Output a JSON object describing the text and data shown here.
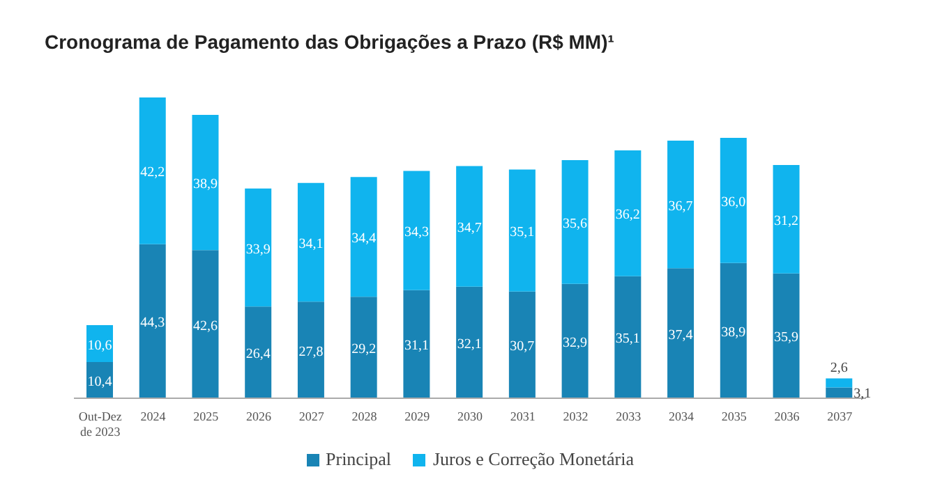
{
  "chart_data": {
    "type": "bar",
    "title": "Cronograma de Pagamento das Obrigações a Prazo (R$ MM)¹",
    "categories": [
      "Out-Dez de 2023",
      "2024",
      "2025",
      "2026",
      "2027",
      "2028",
      "2029",
      "2030",
      "2031",
      "2032",
      "2033",
      "2034",
      "2035",
      "2036",
      "2037"
    ],
    "series": [
      {
        "name": "Principal",
        "color": "#1984b5",
        "values": [
          10.4,
          44.3,
          42.6,
          26.4,
          27.8,
          29.2,
          31.1,
          32.1,
          30.7,
          32.9,
          35.1,
          37.4,
          38.9,
          35.9,
          3.1
        ],
        "value_labels": [
          "10,4",
          "44,3",
          "42,6",
          "26,4",
          "27,8",
          "29,2",
          "31,1",
          "32,1",
          "30,7",
          "32,9",
          "35,1",
          "37,4",
          "38,9",
          "35,9",
          "3,1"
        ]
      },
      {
        "name": "Juros e Correção Monetária",
        "color": "#10b4ee",
        "values": [
          10.6,
          42.2,
          38.9,
          33.9,
          34.1,
          34.4,
          34.3,
          34.7,
          35.1,
          35.6,
          36.2,
          36.7,
          36.0,
          31.2,
          2.6
        ],
        "value_labels": [
          "10,6",
          "42,2",
          "38,9",
          "33,9",
          "34,1",
          "34,4",
          "34,3",
          "34,7",
          "35,1",
          "35,6",
          "36,2",
          "36,7",
          "36,0",
          "31,2",
          "2,6"
        ]
      }
    ],
    "stacked": true,
    "legend": "bottom"
  }
}
